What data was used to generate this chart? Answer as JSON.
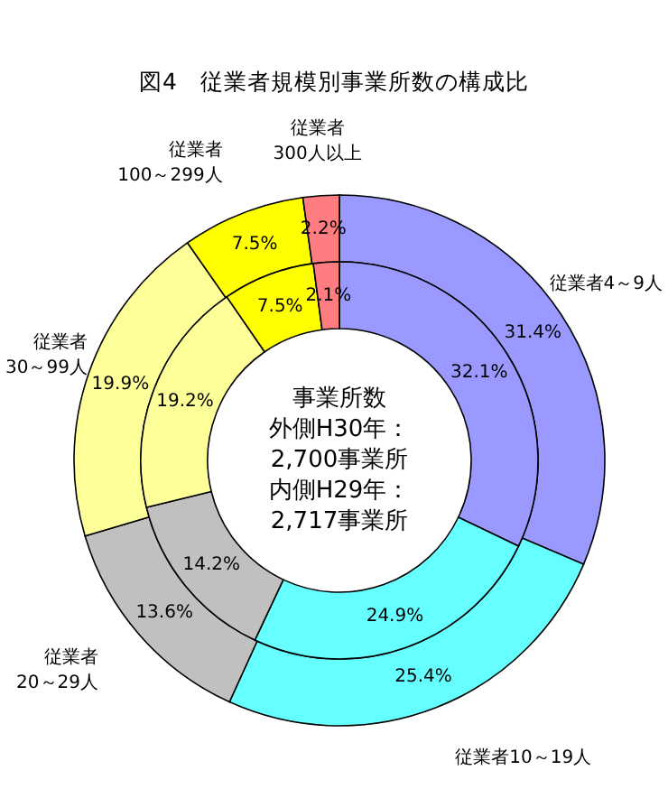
{
  "chart_data": {
    "type": "donut",
    "title": "図4　従業者規模別事業所数の構成比",
    "categories": [
      "従業者4～9人",
      "従業者10～19人",
      "従業者\n20～29人",
      "従業者\n30～99人",
      "従業者\n100～299人",
      "従業者\n300人以上"
    ],
    "colors": [
      "#9999ff",
      "#66ffff",
      "#c0c0c0",
      "#ffff99",
      "#ffff00",
      "#ff7c80"
    ],
    "series": [
      {
        "values": [
          31.4,
          25.4,
          13.6,
          19.9,
          7.5,
          2.2
        ],
        "value_labels": [
          "31.4%",
          "25.4%",
          "13.6%",
          "19.9%",
          "7.5%",
          "2.2%"
        ]
      },
      {
        "values": [
          32.1,
          24.9,
          14.2,
          19.2,
          7.5,
          2.1
        ],
        "value_labels": [
          "32.1%",
          "24.9%",
          "14.2%",
          "19.2%",
          "7.5%",
          "2.1%"
        ]
      }
    ],
    "annotations": [
      "事業所数",
      "外側H30年：",
      "2,700事業所",
      "内側H29年：",
      "2,717事業所"
    ]
  }
}
